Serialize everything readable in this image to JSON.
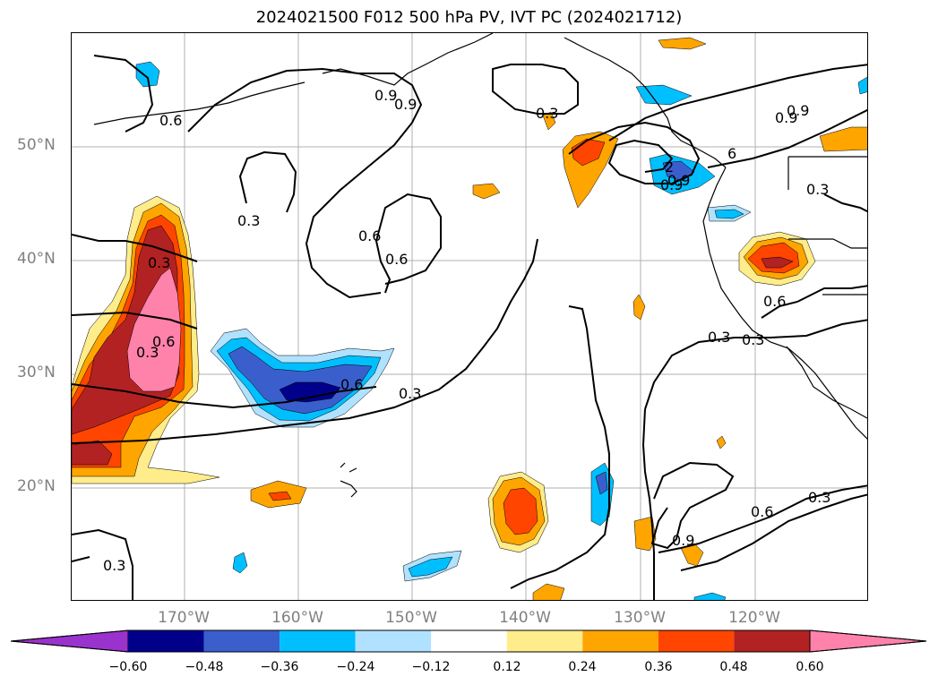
{
  "title": "2024021500 F012 500 hPa PV, IVT PC (2024021712)",
  "lat_labels": [
    "50°N",
    "40°N",
    "30°N",
    "20°N"
  ],
  "lon_labels": [
    "170°W",
    "160°W",
    "150°W",
    "140°W",
    "130°W",
    "120°W"
  ],
  "colorbar": {
    "ticks": [
      "−0.60",
      "−0.48",
      "−0.36",
      "−0.24",
      "−0.12",
      "0.12",
      "0.24",
      "0.36",
      "0.48",
      "0.60"
    ],
    "colors": [
      "#9a32cd",
      "#00008b",
      "#3a5fcd",
      "#00bfff",
      "#b0e2ff",
      "#ffffff",
      "#ffec8b",
      "#ffa500",
      "#ff4500",
      "#b22222",
      "#ff82ab"
    ]
  },
  "contour_labels": [
    "0.9",
    "0.6",
    "0.3",
    "0.9",
    "0.3",
    "0.6",
    "0.3",
    "0.3",
    "0.6",
    "0.3",
    "0.3",
    "0.6",
    "0.3",
    "0.6",
    "0.9",
    "0.9",
    "0.6",
    "0.3",
    "0.9",
    "0.6",
    "0.3",
    "0.3",
    "0.9",
    "0.9",
    "2",
    "6"
  ]
}
